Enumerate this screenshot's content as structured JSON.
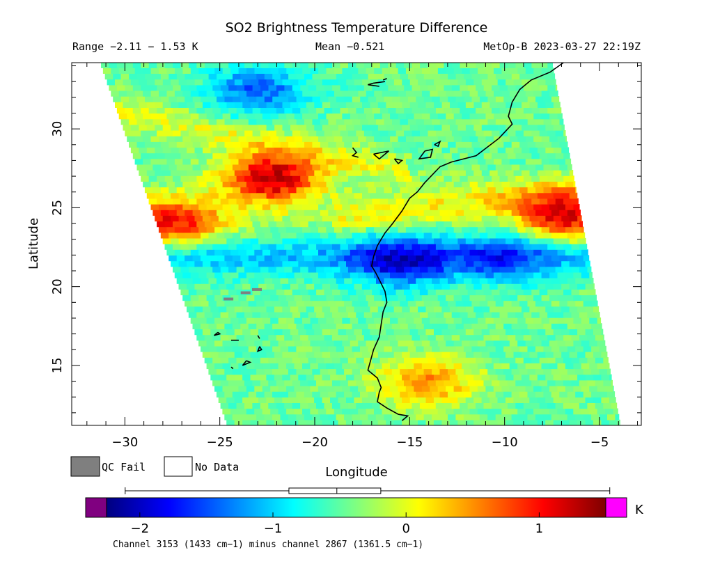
{
  "chart_data": {
    "type": "heatmap",
    "title": "SO2 Brightness Temperature Difference",
    "header": {
      "range_text": "Range −2.11 − 1.53 K",
      "mean_text": "Mean −0.521",
      "satellite_text": "MetOp-B 2023-03-27 22:19Z"
    },
    "xlabel": "Longitude",
    "ylabel": "Latitude",
    "xlim": [
      -32.8,
      -2.8
    ],
    "ylim": [
      11.2,
      34.2
    ],
    "xticks": [
      -30,
      -25,
      -20,
      -15,
      -10,
      -5
    ],
    "yticks": [
      15,
      20,
      25,
      30
    ],
    "xtick_labels": [
      "−30",
      "−25",
      "−20",
      "−15",
      "−10",
      "−5"
    ],
    "ytick_labels": [
      "15",
      "20",
      "25",
      "30"
    ],
    "value_range": [
      -2.11,
      1.53
    ],
    "mean": -0.521,
    "units": "K",
    "swath": {
      "left_edge": [
        [
          -31.3,
          34.2
        ],
        [
          -24.6,
          11.2
        ]
      ],
      "right_edge": [
        [
          -7.5,
          34.2
        ],
        [
          -3.9,
          11.2
        ]
      ]
    },
    "features": [
      {
        "lon": -22.3,
        "lat": 26.9,
        "value": 1.35
      },
      {
        "lon": -6.8,
        "lat": 24.3,
        "value": 1.05
      },
      {
        "lon": -27.5,
        "lat": 24.2,
        "value": 0.95
      },
      {
        "lon": -15.5,
        "lat": 21.5,
        "value": -1.55
      },
      {
        "lon": -23.0,
        "lat": 32.5,
        "value": -1.45
      },
      {
        "lon": -10.0,
        "lat": 21.8,
        "value": -1.2
      },
      {
        "lon": -14.0,
        "lat": 14.0,
        "value": 0.5
      }
    ],
    "legend": {
      "qc_fail_label": "QC Fail",
      "no_data_label": "No Data",
      "qc_fail_color": "#7f7f7f",
      "no_data_color": "#ffffff"
    },
    "colorbar": {
      "min": -2.25,
      "max": 1.5,
      "ticks": [
        -2,
        -1,
        0,
        1
      ],
      "tick_labels": [
        "−2",
        "−1",
        "0",
        "1"
      ],
      "unit_label": "K",
      "under_color": "#800080",
      "over_color": "#ff00ff",
      "colors": [
        "#00007f",
        "#0000ff",
        "#0080ff",
        "#00ffff",
        "#80ff80",
        "#ffff00",
        "#ff8000",
        "#ff0000",
        "#7f0000"
      ],
      "boxplot": {
        "whisker_low": -2.11,
        "q1": -0.88,
        "median": -0.52,
        "q3": -0.19,
        "whisker_high": 1.53
      }
    },
    "caption": "Channel 3153 (1433 cm−1) minus channel 2867 (1361.5 cm−1)"
  }
}
